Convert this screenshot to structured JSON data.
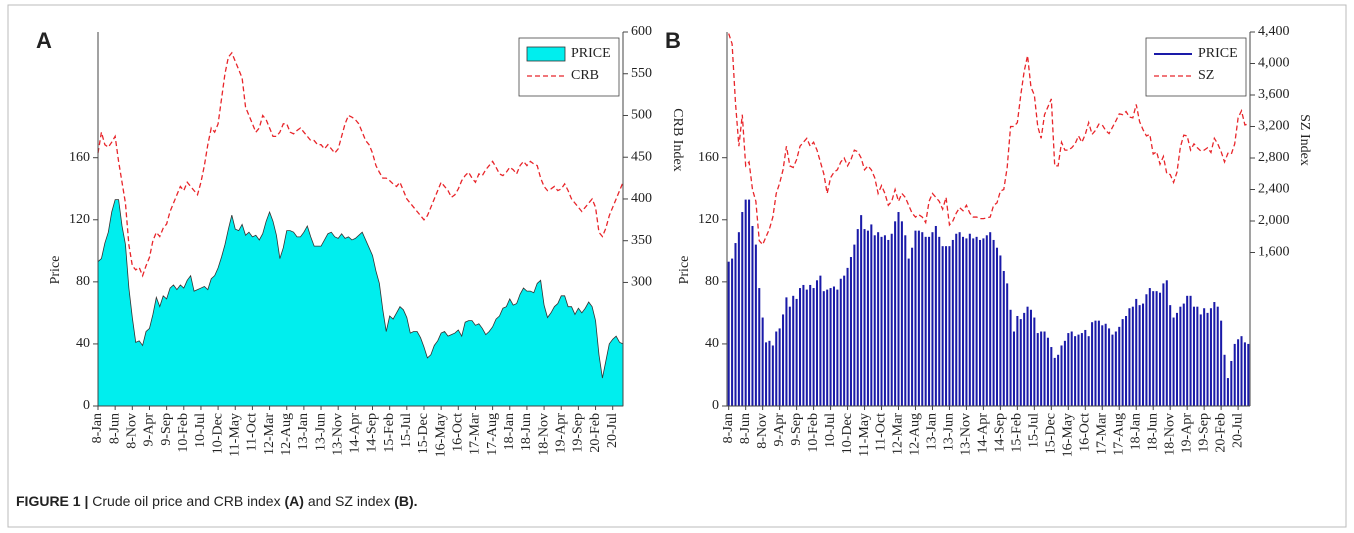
{
  "chart_data": [
    {
      "type": "area",
      "panel": "A",
      "ylabel": "Price",
      "y2label": "CRB Index",
      "legend_loc": "upper right",
      "categories": [
        "8-Jan",
        null,
        null,
        null,
        null,
        "8-Jun",
        null,
        null,
        null,
        null,
        "8-Nov",
        null,
        null,
        null,
        null,
        "9-Apr",
        null,
        null,
        null,
        null,
        "9-Sep",
        null,
        null,
        null,
        null,
        "10-Feb",
        null,
        null,
        null,
        null,
        "10-Jul",
        null,
        null,
        null,
        null,
        "10-Dec",
        null,
        null,
        null,
        null,
        "11-May",
        null,
        null,
        null,
        null,
        "11-Oct",
        null,
        null,
        null,
        null,
        "12-Mar",
        null,
        null,
        null,
        null,
        "12-Aug",
        null,
        null,
        null,
        null,
        "13-Jan",
        null,
        null,
        null,
        null,
        "13-Jun",
        null,
        null,
        null,
        null,
        "13-Nov",
        null,
        null,
        null,
        null,
        "14-Apr",
        null,
        null,
        null,
        null,
        "14-Sep",
        null,
        null,
        null,
        null,
        "15-Feb",
        null,
        null,
        null,
        null,
        "15-Jul",
        null,
        null,
        null,
        null,
        "15-Dec",
        null,
        null,
        null,
        null,
        "16-May",
        null,
        null,
        null,
        null,
        "16-Oct",
        null,
        null,
        null,
        null,
        "17-Mar",
        null,
        null,
        null,
        null,
        "17-Aug",
        null,
        null,
        null,
        null,
        "18-Jan",
        null,
        null,
        null,
        null,
        "18-Jun",
        null,
        null,
        null,
        null,
        "18-Nov",
        null,
        null,
        null,
        null,
        "19-Apr",
        null,
        null,
        null,
        null,
        "19-Sep",
        null,
        null,
        null,
        null,
        "20-Feb",
        null,
        null,
        null,
        null,
        "20-Jul",
        null,
        null,
        null
      ],
      "ylim": [
        0,
        241
      ],
      "yticks": [
        0,
        40,
        80,
        120,
        160
      ],
      "y2lim": [
        152,
        600
      ],
      "y2ticks": [
        300,
        350,
        400,
        450,
        500,
        550,
        600
      ],
      "series": [
        {
          "name": "PRICE",
          "color": "#00eeee",
          "values": [
            93,
            95,
            105,
            112,
            125,
            133,
            133,
            116,
            104,
            76,
            57,
            41,
            42,
            39,
            48,
            50,
            59,
            70,
            64,
            71,
            69,
            76,
            78,
            75,
            78,
            76,
            81,
            84,
            74,
            75,
            76,
            77,
            75,
            82,
            84,
            89,
            96,
            104,
            114,
            123,
            114,
            113,
            117,
            110,
            112,
            109,
            110,
            107,
            111,
            119,
            125,
            119,
            110,
            95,
            102,
            113,
            113,
            112,
            109,
            109,
            112,
            116,
            109,
            103,
            103,
            103,
            107,
            111,
            112,
            109,
            108,
            111,
            108,
            109,
            107,
            108,
            110,
            112,
            107,
            102,
            97,
            87,
            79,
            62,
            48,
            58,
            56,
            60,
            64,
            62,
            57,
            47,
            48,
            48,
            44,
            38,
            31,
            33,
            39,
            42,
            47,
            48,
            45,
            46,
            47,
            49,
            45,
            54,
            55,
            55,
            52,
            53,
            50,
            46,
            48,
            51,
            56,
            58,
            63,
            64,
            69,
            65,
            66,
            72,
            76,
            74,
            74,
            73,
            79,
            81,
            65,
            57,
            60,
            64,
            66,
            71,
            71,
            64,
            64,
            59,
            63,
            60,
            63,
            67,
            64,
            55,
            33,
            18,
            29,
            40,
            43,
            45,
            41,
            40
          ]
        },
        {
          "name": "CRB",
          "color": "#e8252a",
          "axis": "y2",
          "values": [
            455,
            480,
            465,
            462,
            468,
            475,
            445,
            420,
            395,
            345,
            320,
            315,
            318,
            308,
            320,
            330,
            350,
            360,
            355,
            365,
            370,
            385,
            395,
            405,
            415,
            410,
            420,
            415,
            410,
            405,
            420,
            440,
            465,
            485,
            480,
            490,
            520,
            550,
            570,
            575,
            565,
            555,
            545,
            510,
            500,
            490,
            480,
            485,
            500,
            495,
            485,
            475,
            475,
            480,
            490,
            490,
            480,
            478,
            482,
            485,
            480,
            475,
            470,
            470,
            465,
            465,
            460,
            465,
            460,
            455,
            460,
            475,
            490,
            500,
            498,
            495,
            490,
            480,
            470,
            465,
            455,
            440,
            432,
            425,
            425,
            422,
            418,
            415,
            420,
            410,
            400,
            395,
            390,
            385,
            380,
            375,
            380,
            390,
            400,
            410,
            420,
            415,
            410,
            402,
            405,
            412,
            422,
            428,
            432,
            425,
            420,
            430,
            428,
            435,
            440,
            445,
            438,
            430,
            428,
            432,
            438,
            435,
            430,
            440,
            445,
            440,
            445,
            442,
            440,
            425,
            415,
            410,
            412,
            415,
            410,
            412,
            418,
            410,
            400,
            395,
            390,
            385,
            390,
            395,
            400,
            390,
            360,
            355,
            365,
            380,
            390,
            400,
            410,
            420
          ]
        }
      ]
    },
    {
      "type": "bar",
      "panel": "B",
      "ylabel": "Price",
      "y2label": "SZ Index",
      "legend_loc": "upper right",
      "categories": [
        "8-Jan",
        null,
        null,
        null,
        null,
        "8-Jun",
        null,
        null,
        null,
        null,
        "8-Nov",
        null,
        null,
        null,
        null,
        "9-Apr",
        null,
        null,
        null,
        null,
        "9-Sep",
        null,
        null,
        null,
        null,
        "10-Feb",
        null,
        null,
        null,
        null,
        "10-Jul",
        null,
        null,
        null,
        null,
        "10-Dec",
        null,
        null,
        null,
        null,
        "11-May",
        null,
        null,
        null,
        null,
        "11-Oct",
        null,
        null,
        null,
        null,
        "12-Mar",
        null,
        null,
        null,
        null,
        "12-Aug",
        null,
        null,
        null,
        null,
        "13-Jan",
        null,
        null,
        null,
        null,
        "13-Jun",
        null,
        null,
        null,
        null,
        "13-Nov",
        null,
        null,
        null,
        null,
        "14-Apr",
        null,
        null,
        null,
        null,
        "14-Sep",
        null,
        null,
        null,
        null,
        "15-Feb",
        null,
        null,
        null,
        null,
        "15-Jul",
        null,
        null,
        null,
        null,
        "15-Dec",
        null,
        null,
        null,
        null,
        "16-May",
        null,
        null,
        null,
        null,
        "16-Oct",
        null,
        null,
        null,
        null,
        "17-Mar",
        null,
        null,
        null,
        null,
        "17-Aug",
        null,
        null,
        null,
        null,
        "18-Jan",
        null,
        null,
        null,
        null,
        "18-Jun",
        null,
        null,
        null,
        null,
        "18-Nov",
        null,
        null,
        null,
        null,
        "19-Apr",
        null,
        null,
        null,
        null,
        "19-Sep",
        null,
        null,
        null,
        null,
        "20-Feb",
        null,
        null,
        null,
        null,
        "20-Jul",
        null,
        null,
        null
      ],
      "ylim": [
        0,
        241
      ],
      "yticks": [
        0,
        40,
        80,
        120,
        160
      ],
      "y2lim": [
        -349,
        4400
      ],
      "y2ticks": [
        {
          "value": 1600,
          "label": "1,600"
        },
        {
          "value": 2000,
          "label": "2,000"
        },
        {
          "value": 2400,
          "label": "2,400"
        },
        {
          "value": 2800,
          "label": "2,800"
        },
        {
          "value": 3200,
          "label": "3,200"
        },
        {
          "value": 3600,
          "label": "3,600"
        },
        {
          "value": 4000,
          "label": "4,000"
        },
        {
          "value": 4400,
          "label": "4,400"
        }
      ],
      "series": [
        {
          "name": "PRICE",
          "color": "#1a1aa8",
          "values": [
            93,
            95,
            105,
            112,
            125,
            133,
            133,
            116,
            104,
            76,
            57,
            41,
            42,
            39,
            48,
            50,
            59,
            70,
            64,
            71,
            69,
            76,
            78,
            75,
            78,
            76,
            81,
            84,
            74,
            75,
            76,
            77,
            75,
            82,
            84,
            89,
            96,
            104,
            114,
            123,
            114,
            113,
            117,
            110,
            112,
            109,
            110,
            107,
            111,
            119,
            125,
            119,
            110,
            95,
            102,
            113,
            113,
            112,
            109,
            109,
            112,
            116,
            109,
            103,
            103,
            103,
            107,
            111,
            112,
            109,
            108,
            111,
            108,
            109,
            107,
            108,
            110,
            112,
            107,
            102,
            97,
            87,
            79,
            62,
            48,
            58,
            56,
            60,
            64,
            62,
            57,
            47,
            48,
            48,
            44,
            38,
            31,
            33,
            39,
            42,
            47,
            48,
            45,
            46,
            47,
            49,
            45,
            54,
            55,
            55,
            52,
            53,
            50,
            46,
            48,
            51,
            56,
            58,
            63,
            64,
            69,
            65,
            66,
            72,
            76,
            74,
            74,
            73,
            79,
            81,
            65,
            57,
            60,
            64,
            66,
            71,
            71,
            64,
            64,
            59,
            63,
            60,
            63,
            67,
            64,
            55,
            33,
            18,
            29,
            40,
            43,
            45,
            41,
            40
          ]
        },
        {
          "name": "SZ",
          "color": "#e8252a",
          "axis": "y2",
          "values": [
            4380,
            4250,
            3500,
            2950,
            3350,
            2700,
            2750,
            2400,
            2250,
            1750,
            1700,
            1800,
            1900,
            2050,
            2350,
            2480,
            2650,
            2950,
            2700,
            2680,
            2780,
            2950,
            3000,
            3050,
            2950,
            3000,
            2900,
            2750,
            2600,
            2350,
            2550,
            2620,
            2650,
            2750,
            2800,
            2700,
            2780,
            2900,
            2880,
            2800,
            2650,
            2700,
            2650,
            2550,
            2350,
            2450,
            2350,
            2200,
            2250,
            2400,
            2250,
            2350,
            2300,
            2200,
            2100,
            2050,
            2080,
            2050,
            1980,
            2250,
            2350,
            2300,
            2250,
            2150,
            2300,
            1950,
            2000,
            2100,
            2170,
            2130,
            2200,
            2100,
            2050,
            2050,
            2030,
            2030,
            2040,
            2050,
            2200,
            2230,
            2380,
            2400,
            2680,
            3200,
            3200,
            3250,
            3600,
            3900,
            4100,
            3700,
            3600,
            3200,
            3050,
            3350,
            3450,
            3550,
            2700,
            2700,
            3000,
            2900,
            2900,
            2930,
            2980,
            3080,
            3000,
            3100,
            3250,
            3100,
            3150,
            3230,
            3220,
            3150,
            3110,
            3190,
            3270,
            3360,
            3350,
            3390,
            3320,
            3310,
            3480,
            3260,
            3160,
            3080,
            3100,
            2850,
            2880,
            2720,
            2820,
            2600,
            2590,
            2490,
            2620,
            2940,
            3090,
            3080,
            2900,
            2980,
            2930,
            2890,
            2900,
            2930,
            2870,
            3050,
            2980,
            2880,
            2750,
            2860,
            2850,
            2980,
            3310,
            3400,
            3220,
            3230
          ]
        }
      ]
    }
  ],
  "caption": {
    "label": "FIGURE 1 |",
    "parts": [
      "Crude oil price and CRB index",
      "(A)",
      "and SZ index",
      "(B)."
    ]
  }
}
